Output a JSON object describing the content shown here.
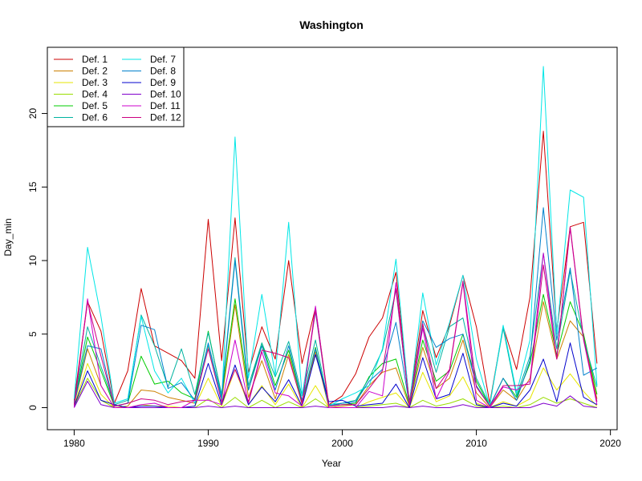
{
  "chart_data": {
    "type": "line",
    "title": "Washington",
    "xlabel": "Year",
    "ylabel": "Day_min",
    "xlim": [
      1978,
      2020.5
    ],
    "ylim": [
      -1.5,
      24.5
    ],
    "x_ticks": [
      1980,
      1990,
      2000,
      2010,
      2020
    ],
    "y_ticks": [
      0,
      5,
      10,
      15,
      20
    ],
    "legend_position": "top-left",
    "x": [
      1980,
      1981,
      1982,
      1983,
      1984,
      1985,
      1986,
      1987,
      1988,
      1989,
      1990,
      1991,
      1992,
      1993,
      1994,
      1995,
      1996,
      1997,
      1998,
      1999,
      2000,
      2001,
      2002,
      2003,
      2004,
      2005,
      2006,
      2007,
      2008,
      2009,
      2010,
      2011,
      2012,
      2013,
      2014,
      2015,
      2016,
      2017,
      2018,
      2019
    ],
    "series": [
      {
        "name": "Def. 1",
        "color": "#cc0000",
        "values": [
          0.5,
          7.2,
          5.2,
          0.3,
          2.5,
          8.1,
          4.2,
          3.7,
          3.2,
          2.0,
          12.8,
          3.2,
          12.9,
          2.4,
          5.5,
          3.3,
          10.0,
          3.0,
          6.8,
          0.2,
          0.8,
          2.3,
          4.8,
          6.1,
          9.2,
          0.4,
          6.6,
          3.4,
          5.6,
          9.0,
          5.5,
          0.3,
          5.5,
          2.6,
          7.5,
          18.8,
          5.2,
          12.3,
          12.6,
          3.0
        ]
      },
      {
        "name": "Def. 2",
        "color": "#cc8000",
        "values": [
          0.2,
          4.0,
          1.5,
          0.0,
          0.1,
          1.2,
          1.1,
          0.7,
          0.5,
          0.3,
          4.2,
          0.5,
          7.0,
          0.7,
          3.2,
          0.6,
          3.6,
          0.2,
          3.8,
          0.0,
          0.1,
          0.2,
          1.5,
          2.4,
          2.7,
          0.1,
          4.1,
          1.3,
          2.0,
          4.6,
          1.0,
          0.0,
          1.2,
          0.5,
          2.0,
          7.2,
          3.3,
          5.9,
          4.8,
          0.6
        ]
      },
      {
        "name": "Def. 3",
        "color": "#e6e600",
        "values": [
          0.1,
          3.0,
          0.9,
          0.0,
          0.0,
          0.2,
          0.1,
          0.1,
          0.0,
          0.1,
          2.0,
          0.1,
          2.6,
          0.2,
          1.5,
          0.2,
          1.6,
          0.0,
          1.5,
          0.0,
          0.0,
          0.0,
          0.4,
          0.7,
          1.0,
          0.0,
          2.4,
          0.4,
          0.8,
          2.1,
          0.3,
          0.0,
          0.4,
          0.1,
          0.6,
          2.7,
          1.2,
          2.3,
          1.1,
          0.1
        ]
      },
      {
        "name": "Def. 4",
        "color": "#99dd00",
        "values": [
          0.1,
          2.0,
          0.5,
          0.0,
          0.0,
          0.0,
          0.0,
          0.0,
          0.0,
          0.0,
          0.6,
          0.0,
          0.7,
          0.0,
          0.5,
          0.0,
          0.4,
          0.0,
          0.6,
          0.0,
          0.0,
          0.0,
          0.1,
          0.2,
          0.3,
          0.0,
          0.5,
          0.1,
          0.3,
          0.6,
          0.1,
          0.0,
          0.1,
          0.0,
          0.2,
          0.7,
          0.3,
          0.6,
          0.3,
          0.0
        ]
      },
      {
        "name": "Def. 5",
        "color": "#00cc00",
        "values": [
          0.3,
          4.8,
          2.5,
          0.1,
          0.3,
          3.5,
          1.6,
          1.8,
          1.0,
          0.6,
          5.2,
          0.8,
          7.4,
          1.2,
          4.4,
          1.5,
          3.9,
          0.4,
          4.1,
          0.1,
          0.2,
          0.3,
          2.1,
          3.0,
          3.3,
          0.2,
          4.6,
          1.8,
          2.5,
          5.0,
          1.8,
          0.1,
          2.0,
          0.7,
          3.0,
          7.7,
          3.6,
          7.2,
          5.0,
          0.9
        ]
      },
      {
        "name": "Def. 6",
        "color": "#00b3a0",
        "values": [
          0.4,
          5.5,
          2.8,
          0.2,
          0.5,
          6.3,
          4.2,
          1.4,
          4.0,
          0.9,
          5.1,
          0.9,
          10.2,
          1.5,
          4.4,
          2.1,
          4.5,
          0.8,
          4.6,
          0.2,
          0.3,
          0.5,
          2.0,
          3.9,
          8.0,
          0.2,
          5.6,
          2.4,
          5.5,
          6.1,
          2.0,
          0.2,
          5.4,
          0.8,
          3.5,
          10.5,
          4.0,
          9.3,
          4.7,
          1.4
        ]
      },
      {
        "name": "Def. 7",
        "color": "#00e6e6",
        "values": [
          0.6,
          10.9,
          6.2,
          0.3,
          0.6,
          6.2,
          2.5,
          1.0,
          2.0,
          0.3,
          4.3,
          0.5,
          18.4,
          2.0,
          7.7,
          2.2,
          12.6,
          0.8,
          6.5,
          0.1,
          0.6,
          1.0,
          1.5,
          4.0,
          10.1,
          0.2,
          7.8,
          2.9,
          5.8,
          9.0,
          3.3,
          0.1,
          5.6,
          1.0,
          4.6,
          23.2,
          5.0,
          14.8,
          14.3,
          1.5
        ]
      },
      {
        "name": "Def. 8",
        "color": "#0080cc",
        "values": [
          0.3,
          4.2,
          4.0,
          0.1,
          0.3,
          5.6,
          5.3,
          1.3,
          1.7,
          0.5,
          4.4,
          0.7,
          10.0,
          1.2,
          4.2,
          1.2,
          4.2,
          0.5,
          4.0,
          0.1,
          0.3,
          0.4,
          1.8,
          2.6,
          5.8,
          0.2,
          5.9,
          4.1,
          4.7,
          5.0,
          1.5,
          0.1,
          2.0,
          0.5,
          3.2,
          13.6,
          4.6,
          9.5,
          2.2,
          2.7
        ]
      },
      {
        "name": "Def. 9",
        "color": "#0000cc",
        "values": [
          0.1,
          2.5,
          0.5,
          0.2,
          0.0,
          0.1,
          0.1,
          0.0,
          0.0,
          0.1,
          3.0,
          0.2,
          2.9,
          0.2,
          1.4,
          0.4,
          1.9,
          0.1,
          3.6,
          0.4,
          0.5,
          0.1,
          0.2,
          0.3,
          1.6,
          0.0,
          3.4,
          0.6,
          0.9,
          3.7,
          0.2,
          0.0,
          0.3,
          0.1,
          1.2,
          3.3,
          0.4,
          4.4,
          0.7,
          0.2
        ]
      },
      {
        "name": "Def. 10",
        "color": "#8000cc",
        "values": [
          0.0,
          1.8,
          0.2,
          0.0,
          0.0,
          0.0,
          0.0,
          0.0,
          0.0,
          0.0,
          0.1,
          0.0,
          0.1,
          0.0,
          0.0,
          0.0,
          0.0,
          0.0,
          0.1,
          0.0,
          0.0,
          0.0,
          0.0,
          0.0,
          0.1,
          0.0,
          0.1,
          0.0,
          0.0,
          0.2,
          0.0,
          0.0,
          0.0,
          0.0,
          0.0,
          0.3,
          0.1,
          0.8,
          0.1,
          0.0
        ]
      },
      {
        "name": "Def. 11",
        "color": "#cc00cc",
        "values": [
          0.0,
          7.4,
          1.5,
          0.0,
          0.0,
          0.2,
          0.3,
          0.0,
          0.0,
          0.5,
          0.5,
          0.2,
          4.6,
          0.3,
          3.8,
          1.0,
          0.8,
          0.1,
          6.9,
          0.0,
          0.0,
          0.0,
          1.1,
          0.8,
          8.5,
          0.1,
          5.4,
          0.6,
          2.5,
          8.5,
          0.5,
          0.0,
          1.4,
          1.2,
          1.8,
          10.5,
          3.3,
          12.2,
          4.6,
          0.2
        ]
      },
      {
        "name": "Def. 12",
        "color": "#cc0080",
        "values": [
          0.2,
          7.2,
          3.5,
          0.1,
          0.3,
          0.6,
          0.5,
          0.2,
          0.4,
          0.5,
          4.0,
          0.4,
          2.6,
          0.4,
          3.9,
          3.7,
          3.4,
          0.3,
          6.6,
          0.1,
          0.2,
          0.2,
          1.3,
          2.5,
          8.1,
          0.2,
          5.7,
          1.3,
          2.6,
          8.6,
          1.4,
          0.1,
          1.5,
          1.5,
          1.6,
          9.7,
          3.3,
          12.3,
          4.7,
          0.4
        ]
      }
    ]
  }
}
